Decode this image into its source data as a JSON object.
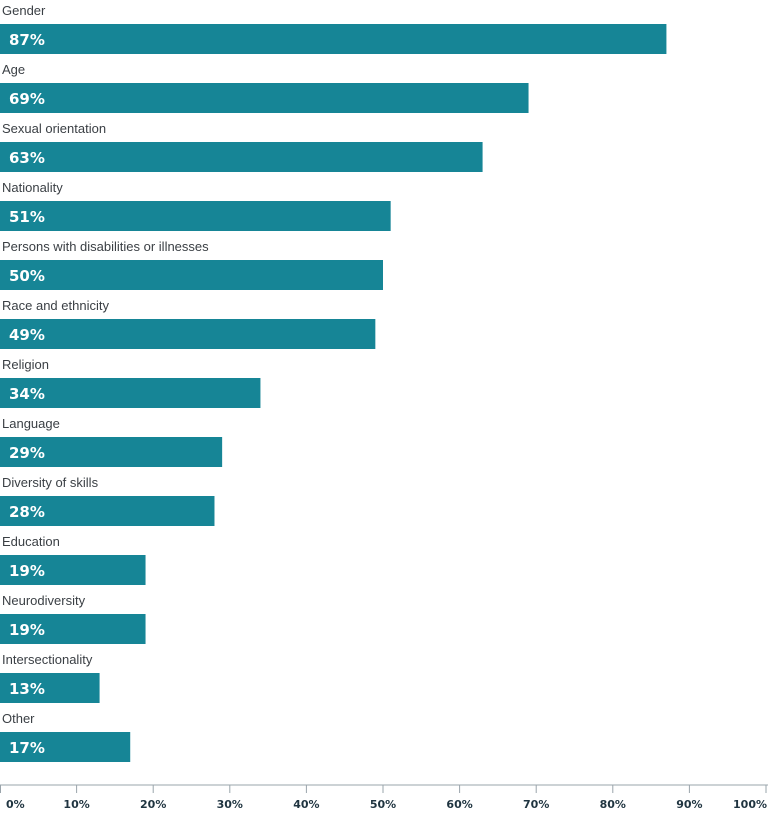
{
  "chart_data": {
    "type": "bar",
    "orientation": "horizontal",
    "title": "",
    "xlabel": "",
    "ylabel": "",
    "xlim": [
      0,
      100
    ],
    "grid": false,
    "bar_color": "#168596",
    "axis_color": "#9aa4ab",
    "categories": [
      "Gender",
      "Age",
      "Sexual orientation",
      "Nationality",
      "Persons with disabilities or illnesses",
      "Race and ethnicity",
      "Religion",
      "Language",
      "Diversity of skills",
      "Education",
      "Neurodiversity",
      "Intersectionality",
      "Other"
    ],
    "values": [
      87,
      69,
      63,
      51,
      50,
      49,
      34,
      29,
      28,
      19,
      19,
      13,
      17
    ],
    "value_labels": [
      "87%",
      "69%",
      "63%",
      "51%",
      "50%",
      "49%",
      "34%",
      "29%",
      "28%",
      "19%",
      "19%",
      "13%",
      "17%"
    ],
    "ticks": [
      0,
      10,
      20,
      30,
      40,
      50,
      60,
      70,
      80,
      90,
      100
    ],
    "tick_labels": [
      "0%",
      "10%",
      "20%",
      "30%",
      "40%",
      "50%",
      "60%",
      "70%",
      "80%",
      "90%",
      "100%"
    ]
  }
}
